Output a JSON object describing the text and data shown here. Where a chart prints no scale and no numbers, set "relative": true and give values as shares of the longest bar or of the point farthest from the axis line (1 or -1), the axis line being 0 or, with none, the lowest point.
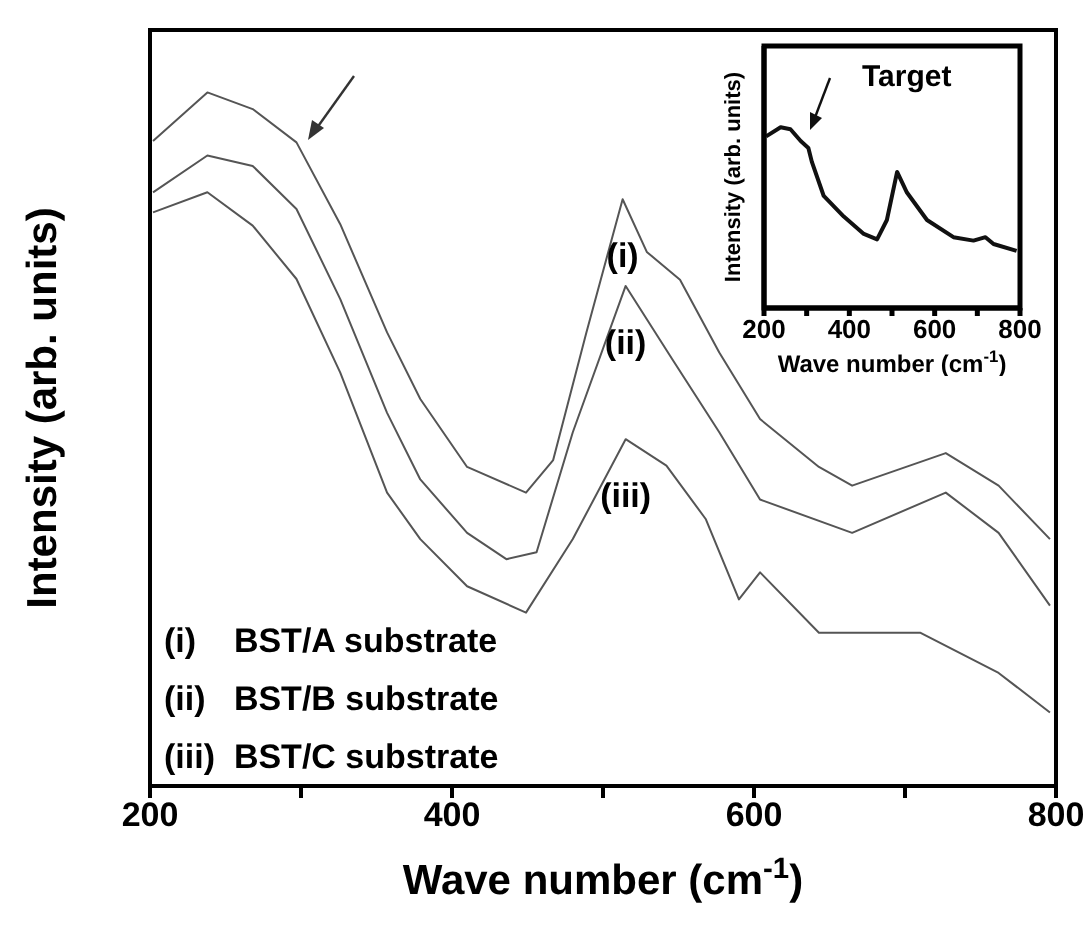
{
  "chart_data": [
    {
      "type": "line",
      "relative": true,
      "xlabel": "Wave number (cm$^{-1}$)",
      "ylabel": "Intensity (arb. units)",
      "xlim": [
        200,
        800
      ],
      "xticks": [
        200,
        {
          "value": 300,
          "label": null
        },
        400,
        {
          "value": 500,
          "label": null
        },
        600,
        {
          "value": 700,
          "label": null
        },
        800
      ],
      "annotations": [
        "(i)    BST/A substrate",
        "(ii)   BST/B substrate",
        "(iii)  BST/C substrate"
      ],
      "series": [
        {
          "name": "(i)",
          "color": "#555555",
          "x": [
            202,
            238,
            268,
            297,
            326,
            357,
            379,
            410,
            449,
            467,
            489,
            513,
            529,
            551,
            577,
            604,
            643,
            665,
            727,
            762,
            796
          ],
          "values": [
            0.93,
            1.0,
            0.976,
            0.928,
            0.81,
            0.654,
            0.558,
            0.46,
            0.423,
            0.47,
            0.654,
            0.846,
            0.77,
            0.73,
            0.625,
            0.529,
            0.46,
            0.433,
            0.48,
            0.433,
            0.356
          ]
        },
        {
          "name": "(ii)",
          "color": "#555555",
          "x": [
            202,
            238,
            268,
            297,
            326,
            357,
            379,
            410,
            436,
            456,
            480,
            515,
            546,
            577,
            604,
            665,
            727,
            762,
            796
          ],
          "values": [
            0.856,
            0.909,
            0.894,
            0.832,
            0.702,
            0.538,
            0.442,
            0.365,
            0.327,
            0.337,
            0.51,
            0.721,
            0.615,
            0.51,
            0.413,
            0.365,
            0.423,
            0.365,
            0.26
          ]
        },
        {
          "name": "(iii)",
          "color": "#555555",
          "x": [
            202,
            238,
            268,
            297,
            326,
            357,
            379,
            410,
            449,
            480,
            515,
            542,
            568,
            590,
            604,
            643,
            710,
            762,
            796
          ],
          "values": [
            0.827,
            0.856,
            0.808,
            0.731,
            0.596,
            0.423,
            0.356,
            0.288,
            0.25,
            0.356,
            0.5,
            0.462,
            0.385,
            0.269,
            0.308,
            0.221,
            0.221,
            0.163,
            0.106
          ]
        }
      ]
    },
    {
      "type": "line",
      "relative": true,
      "xlabel": "Wave number (cm$^{-1}$)",
      "ylabel": "Intensity (arb. units)",
      "xlim": [
        200,
        800
      ],
      "xticks": [
        200,
        {
          "value": 300,
          "label": null
        },
        400,
        {
          "value": 500,
          "label": null
        },
        600,
        {
          "value": 700,
          "label": null
        },
        800
      ],
      "annotations": [
        "Target"
      ],
      "series": [
        {
          "color": "#111111",
          "x": [
            205,
            239,
            262,
            286,
            304,
            312,
            340,
            387,
            434,
            465,
            488,
            512,
            535,
            582,
            644,
            691,
            719,
            738,
            792
          ],
          "values": [
            0.95,
            1.0,
            0.989,
            0.924,
            0.886,
            0.81,
            0.62,
            0.506,
            0.41,
            0.38,
            0.487,
            0.753,
            0.639,
            0.487,
            0.392,
            0.373,
            0.392,
            0.354,
            0.316
          ]
        }
      ]
    }
  ]
}
